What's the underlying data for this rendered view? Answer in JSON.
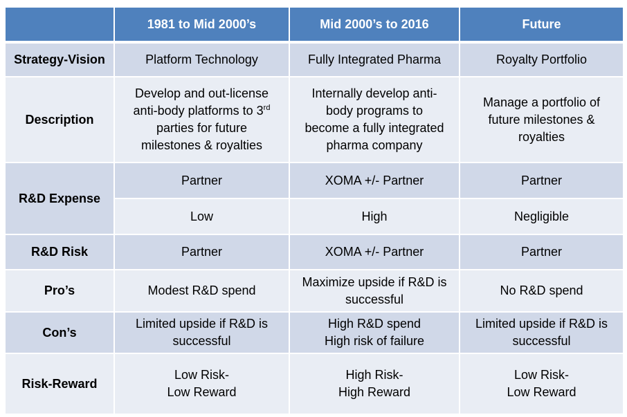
{
  "table": {
    "header": {
      "corner": "",
      "col1": "1981 to Mid 2000’s",
      "col2": "Mid 2000’s to 2016",
      "col3": "Future"
    },
    "rows": {
      "strategy": {
        "label": "Strategy-Vision",
        "col1": "Platform Technology",
        "col2": "Fully Integrated Pharma",
        "col3": "Royalty Portfolio"
      },
      "description": {
        "label": "Description",
        "col1_line1": "Develop and out-license",
        "col1_line2_pre": "anti-body platforms to 3",
        "col1_line2_sup": "rd",
        "col1_line3": "parties for future",
        "col1_line4": "milestones & royalties",
        "col2_line1": "Internally develop anti-",
        "col2_line2": "body programs to",
        "col2_line3": "become a fully integrated",
        "col2_line4": "pharma company",
        "col3_line1": "Manage a portfolio of",
        "col3_line2": "future milestones &",
        "col3_line3": "royalties"
      },
      "rd_expense": {
        "label": "R&D Expense",
        "a_col1": "Partner",
        "a_col2": "XOMA +/- Partner",
        "a_col3": "Partner",
        "b_col1": "Low",
        "b_col2": "High",
        "b_col3": "Negligible"
      },
      "rd_risk": {
        "label": "R&D Risk",
        "col1": "Partner",
        "col2": "XOMA +/- Partner",
        "col3": "Partner"
      },
      "pros": {
        "label": "Pro’s",
        "col1": "Modest R&D spend",
        "col2_line1": "Maximize upside if R&D is",
        "col2_line2": "successful",
        "col3": "No R&D spend"
      },
      "cons": {
        "label": "Con’s",
        "col1_line1": "Limited upside if R&D is",
        "col1_line2": "successful",
        "col2_line1": "High R&D spend",
        "col2_line2": "High risk of failure",
        "col3_line1": "Limited upside if R&D is",
        "col3_line2": "successful"
      },
      "risk_reward": {
        "label": "Risk-Reward",
        "col1_line1": "Low Risk-",
        "col1_line2": "Low Reward",
        "col2_line1": "High Risk-",
        "col2_line2": "High Reward",
        "col3_line1": "Low Risk-",
        "col3_line2": "Low Reward"
      }
    }
  },
  "colors": {
    "header_bg": "#4f81bd",
    "row_dark": "#d0d8e8",
    "row_light": "#e9edf4",
    "header_text": "#ffffff"
  }
}
